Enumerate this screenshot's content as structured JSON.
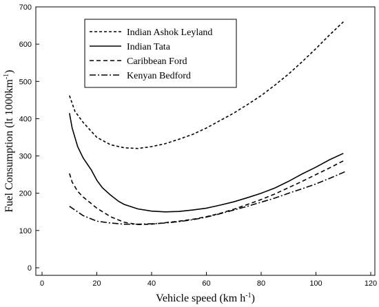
{
  "chart_data": {
    "type": "line",
    "xlabel": "Vehicle speed (km h",
    "xlabel_sup": "-1",
    "xlabel_end": ")",
    "ylabel": "Fuel Consumption (lt 1000km",
    "ylabel_sup": "-1",
    "ylabel_end": ")",
    "xlim": [
      0,
      120
    ],
    "ylim": [
      0,
      700
    ],
    "xticks": [
      0,
      20,
      40,
      60,
      80,
      100,
      120
    ],
    "yticks": [
      0,
      100,
      200,
      300,
      400,
      500,
      600,
      700
    ],
    "grid": false,
    "legend_position": "top-left",
    "series": [
      {
        "name": "Indian Ashok Leyland",
        "dash": "4,3",
        "points": [
          [
            10,
            462
          ],
          [
            12,
            420
          ],
          [
            15,
            390
          ],
          [
            20,
            350
          ],
          [
            25,
            330
          ],
          [
            30,
            322
          ],
          [
            35,
            320
          ],
          [
            40,
            325
          ],
          [
            45,
            333
          ],
          [
            50,
            345
          ],
          [
            55,
            358
          ],
          [
            60,
            375
          ],
          [
            65,
            395
          ],
          [
            70,
            415
          ],
          [
            75,
            438
          ],
          [
            80,
            462
          ],
          [
            85,
            490
          ],
          [
            90,
            520
          ],
          [
            95,
            553
          ],
          [
            100,
            588
          ],
          [
            105,
            625
          ],
          [
            110,
            660
          ]
        ]
      },
      {
        "name": "Indian Tata",
        "dash": "none",
        "points": [
          [
            10,
            415
          ],
          [
            11,
            375
          ],
          [
            13,
            325
          ],
          [
            15,
            295
          ],
          [
            18,
            262
          ],
          [
            20,
            235
          ],
          [
            22,
            215
          ],
          [
            25,
            195
          ],
          [
            28,
            178
          ],
          [
            30,
            170
          ],
          [
            35,
            158
          ],
          [
            40,
            152
          ],
          [
            45,
            150
          ],
          [
            50,
            151
          ],
          [
            55,
            155
          ],
          [
            60,
            160
          ],
          [
            65,
            168
          ],
          [
            70,
            177
          ],
          [
            75,
            188
          ],
          [
            80,
            200
          ],
          [
            85,
            214
          ],
          [
            90,
            232
          ],
          [
            95,
            252
          ],
          [
            100,
            270
          ],
          [
            105,
            290
          ],
          [
            110,
            307
          ]
        ]
      },
      {
        "name": "Caribbean Ford",
        "dash": "6,4",
        "points": [
          [
            10,
            253
          ],
          [
            11,
            230
          ],
          [
            13,
            205
          ],
          [
            15,
            190
          ],
          [
            20,
            160
          ],
          [
            25,
            137
          ],
          [
            30,
            122
          ],
          [
            35,
            116
          ],
          [
            40,
            117
          ],
          [
            45,
            121
          ],
          [
            50,
            125
          ],
          [
            55,
            130
          ],
          [
            60,
            137
          ],
          [
            65,
            146
          ],
          [
            70,
            157
          ],
          [
            75,
            170
          ],
          [
            80,
            183
          ],
          [
            85,
            198
          ],
          [
            90,
            215
          ],
          [
            95,
            232
          ],
          [
            100,
            250
          ],
          [
            105,
            268
          ],
          [
            110,
            287
          ]
        ]
      },
      {
        "name": "Kenyan Bedford",
        "dash": "9,3,2,3",
        "points": [
          [
            10,
            165
          ],
          [
            12,
            155
          ],
          [
            15,
            140
          ],
          [
            20,
            125
          ],
          [
            25,
            120
          ],
          [
            30,
            117
          ],
          [
            35,
            117
          ],
          [
            40,
            118
          ],
          [
            45,
            120
          ],
          [
            50,
            124
          ],
          [
            55,
            129
          ],
          [
            60,
            136
          ],
          [
            65,
            145
          ],
          [
            70,
            155
          ],
          [
            75,
            165
          ],
          [
            80,
            176
          ],
          [
            85,
            187
          ],
          [
            90,
            200
          ],
          [
            95,
            212
          ],
          [
            100,
            225
          ],
          [
            105,
            240
          ],
          [
            111,
            259
          ]
        ]
      }
    ]
  }
}
